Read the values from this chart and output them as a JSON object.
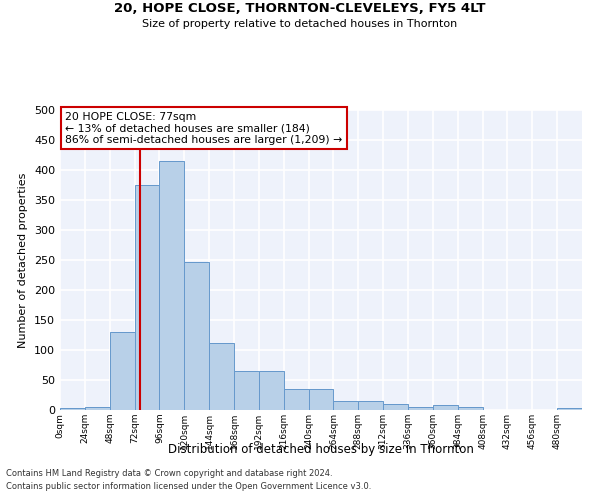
{
  "title": "20, HOPE CLOSE, THORNTON-CLEVELEYS, FY5 4LT",
  "subtitle": "Size of property relative to detached houses in Thornton",
  "xlabel": "Distribution of detached houses by size in Thornton",
  "ylabel": "Number of detached properties",
  "bin_edges": [
    0,
    24,
    48,
    72,
    96,
    120,
    144,
    168,
    192,
    216,
    240,
    264,
    288,
    312,
    336,
    360,
    384,
    408,
    432,
    456,
    480,
    504
  ],
  "bar_values": [
    4,
    5,
    130,
    375,
    415,
    247,
    112,
    65,
    65,
    35,
    35,
    15,
    15,
    10,
    5,
    8,
    5,
    0,
    0,
    0,
    4
  ],
  "bar_color": "#b8d0e8",
  "bar_edge_color": "#6699cc",
  "property_size": 77,
  "vline_color": "#cc0000",
  "annotation_text": "20 HOPE CLOSE: 77sqm\n← 13% of detached houses are smaller (184)\n86% of semi-detached houses are larger (1,209) →",
  "annotation_box_color": "#ffffff",
  "annotation_box_edge": "#cc0000",
  "ylim": [
    0,
    500
  ],
  "yticks": [
    0,
    50,
    100,
    150,
    200,
    250,
    300,
    350,
    400,
    450,
    500
  ],
  "background_color": "#eef2fb",
  "grid_color": "#ffffff",
  "footer_line1": "Contains HM Land Registry data © Crown copyright and database right 2024.",
  "footer_line2": "Contains public sector information licensed under the Open Government Licence v3.0."
}
